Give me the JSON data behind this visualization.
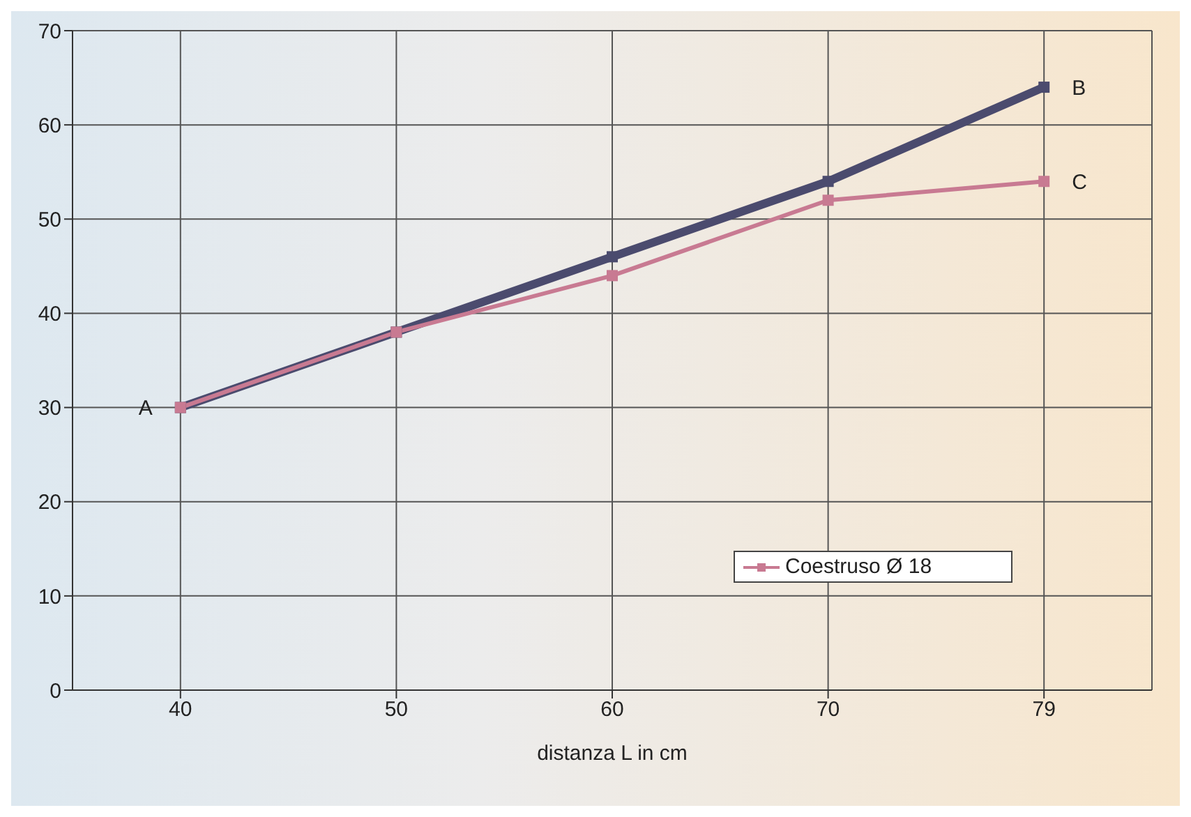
{
  "chart_data": {
    "type": "line",
    "xlabel": "distanza L in cm",
    "categories": [
      "40",
      "50",
      "60",
      "70",
      "79"
    ],
    "series": [
      {
        "color": "#4b4b6e",
        "values": [
          30,
          38,
          46,
          54,
          64
        ]
      },
      {
        "name": "Coestruso Ø 18",
        "color": "#c87a92",
        "values": [
          30,
          38,
          44,
          52,
          54
        ]
      }
    ],
    "ylim": [
      0,
      70
    ],
    "yticks": [
      0,
      10,
      20,
      30,
      40,
      50,
      60,
      70
    ],
    "grid": true,
    "legend": "bottom right",
    "marker": "square",
    "line_style": "solid",
    "annotations": [
      {
        "text": "A",
        "x": "40",
        "y": 30
      },
      {
        "text": "B",
        "x": "79",
        "y": 64
      },
      {
        "text": "C",
        "x": "79",
        "y": 54
      }
    ]
  }
}
